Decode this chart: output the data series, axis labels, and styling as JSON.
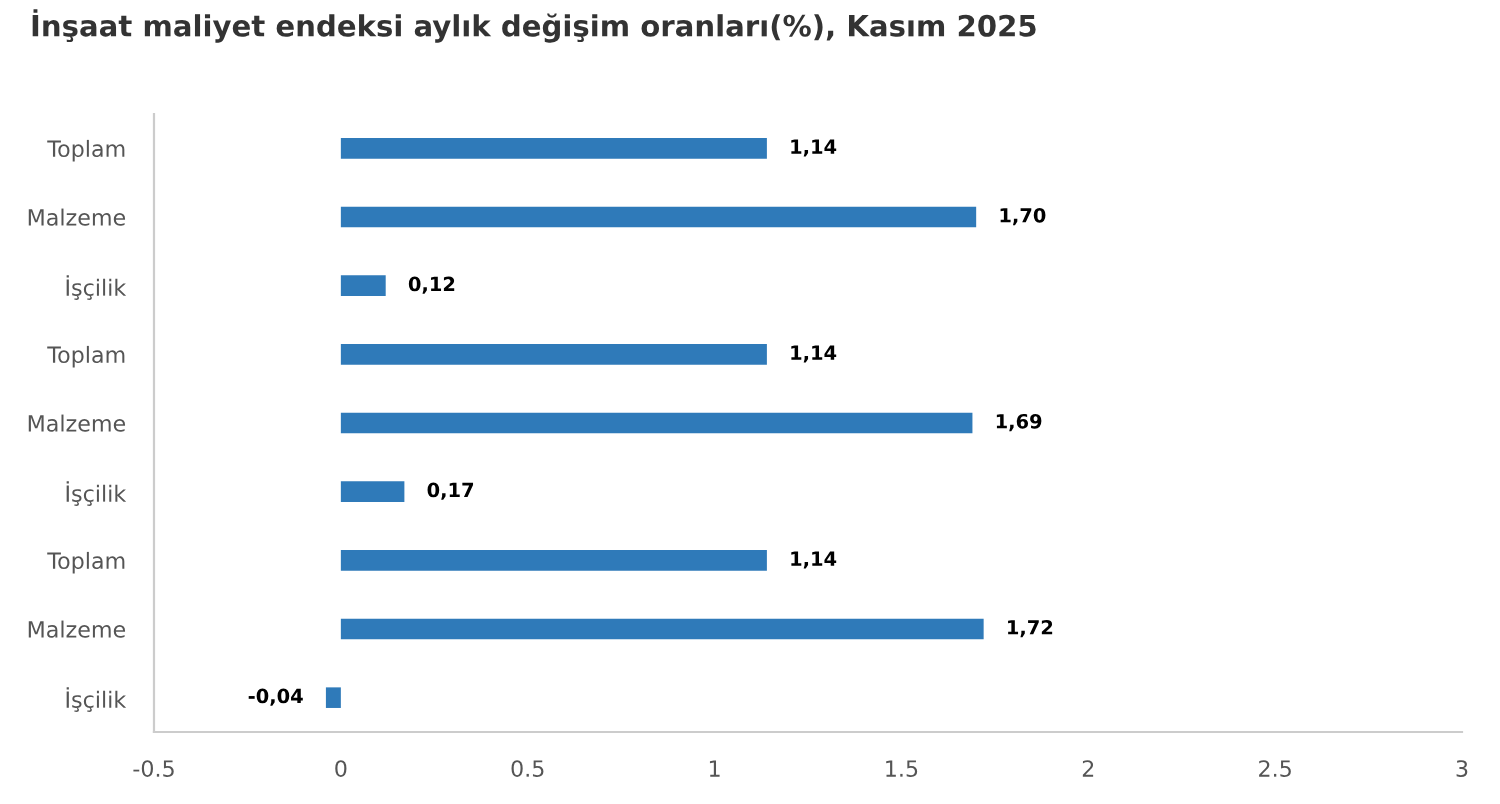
{
  "chart_data": {
    "type": "bar",
    "orientation": "horizontal",
    "title": "İnşaat maliyet endeksi aylık değişim oranları(%), Kasım 2025",
    "categories": [
      "Toplam",
      "Malzeme",
      "İşçilik",
      "Toplam",
      "Malzeme",
      "İşçilik",
      "Toplam",
      "Malzeme",
      "İşçilik"
    ],
    "values": [
      1.14,
      1.7,
      0.12,
      1.14,
      1.69,
      0.17,
      1.14,
      1.72,
      -0.04
    ],
    "value_labels": [
      "1,14",
      "1,70",
      "0,12",
      "1,14",
      "1,69",
      "0,17",
      "1,14",
      "1,72",
      "-0,04"
    ],
    "color": "#2f7ab9",
    "xlim": [
      -0.5,
      3
    ],
    "xticks": [
      -0.5,
      0,
      0.5,
      1,
      1.5,
      2,
      2.5,
      3
    ],
    "grid": false,
    "legend": false
  }
}
